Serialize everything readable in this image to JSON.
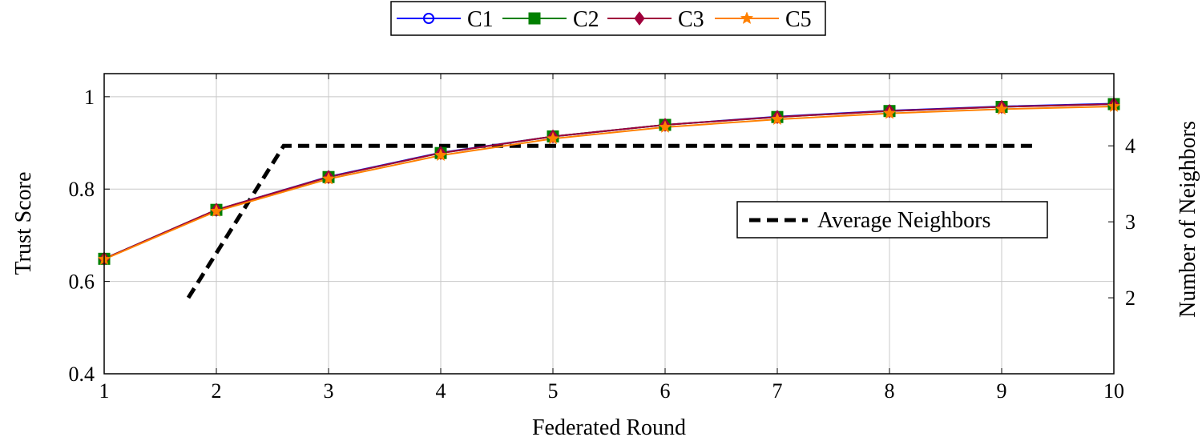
{
  "chart_data": {
    "type": "line",
    "xlabel": "Federated Round",
    "ylabel": "Trust Score",
    "y2label": "Number of Neighbors",
    "x_ticks": [
      "1",
      "2",
      "3",
      "4",
      "5",
      "6",
      "7",
      "8",
      "9",
      "10"
    ],
    "y_ticks": [
      "0.4",
      "0.6",
      "0.8",
      "1"
    ],
    "y2_ticks": [
      "2",
      "3",
      "4"
    ],
    "xlim": [
      1,
      10
    ],
    "ylim": [
      0.4,
      1.05
    ],
    "y2lim": [
      1,
      4.95
    ],
    "grid": true,
    "legend_position": "top-center",
    "secondary_legend_position": "right-middle",
    "x": [
      1,
      2,
      3,
      4,
      5,
      6,
      7,
      8,
      9,
      10
    ],
    "series": [
      {
        "name": "C1",
        "color": "#0000ff",
        "marker": "circle-open",
        "values": [
          0.649,
          0.755,
          0.827,
          0.879,
          0.914,
          0.939,
          0.957,
          0.97,
          0.979,
          0.985
        ]
      },
      {
        "name": "C2",
        "color": "#008000",
        "marker": "square",
        "values": [
          0.649,
          0.755,
          0.826,
          0.878,
          0.914,
          0.939,
          0.956,
          0.969,
          0.978,
          0.984
        ]
      },
      {
        "name": "C3",
        "color": "#a0003c",
        "marker": "diamond",
        "values": [
          0.649,
          0.755,
          0.826,
          0.878,
          0.914,
          0.939,
          0.956,
          0.969,
          0.978,
          0.984
        ]
      },
      {
        "name": "C5",
        "color": "#ff8000",
        "marker": "star",
        "values": [
          0.648,
          0.752,
          0.822,
          0.873,
          0.909,
          0.934,
          0.951,
          0.964,
          0.973,
          0.979
        ]
      }
    ],
    "secondary_series": {
      "name": "Average Neighbors",
      "color": "#000000",
      "style": "dashed",
      "x": [
        1.75,
        2.6,
        9.3
      ],
      "values": [
        2.0,
        4.0,
        4.0
      ]
    }
  }
}
